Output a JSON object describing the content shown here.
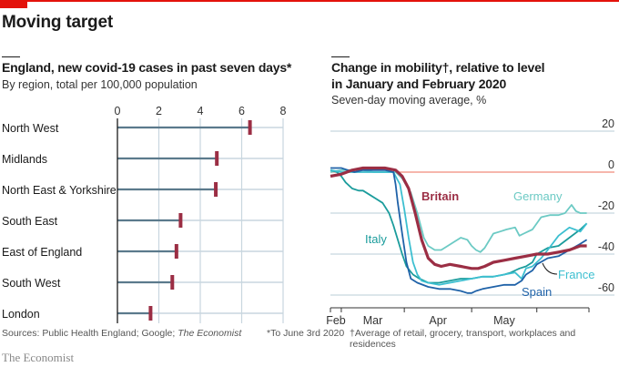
{
  "title": "Moving target",
  "brand": "The Economist",
  "footer": {
    "sources_prefix": "Sources: Public Health England; Google; ",
    "sources_italic": "The Economist",
    "note1": "*To June 3rd 2020",
    "note2": "†Average of retail, grocery, transport, workplaces and residences"
  },
  "colors": {
    "accent_red": "#e3120b",
    "bar_line": "#5b7a8c",
    "marker": "#9b2e44",
    "grid": "#c8d6df",
    "britain": "#9b2e44",
    "germany": "#6ccac4",
    "italy": "#1b9c9c",
    "france": "#3cbfd0",
    "spain": "#1f62a8",
    "zero_line": "#f08a7a"
  },
  "chart_data": [
    {
      "type": "bar",
      "title": "England, new covid-19 cases in past seven days*",
      "subtitle": "By region, total per 100,000 population",
      "categories": [
        "North West",
        "Midlands",
        "North East & Yorkshire",
        "South East",
        "East of England",
        "South West",
        "London"
      ],
      "values": [
        6.4,
        4.8,
        4.75,
        3.05,
        2.85,
        2.65,
        1.6
      ],
      "xlim": [
        0,
        8
      ],
      "xticks": [
        "0",
        "2",
        "4",
        "6",
        "8"
      ],
      "xtick_values": [
        0,
        2,
        4,
        6,
        8
      ],
      "grid": true
    },
    {
      "type": "line",
      "title_line1": "Change in mobility†, relative to level",
      "title_line2": "in January and February 2020",
      "subtitle": "Seven-day moving average, %",
      "ylim": [
        -65,
        20
      ],
      "yticks": [
        20,
        0,
        -20,
        -40,
        -60
      ],
      "ytick_labels": [
        "20",
        "0",
        "-20",
        "-40",
        "-60"
      ],
      "x_months": [
        "Feb",
        "Mar",
        "Apr",
        "May"
      ],
      "x_month_positions_days": [
        0,
        29,
        60,
        90
      ],
      "xlim_days": [
        -5,
        114
      ],
      "x_unit": "days since Feb 1st 2020",
      "series": [
        {
          "name": "Germany",
          "label": "Germany",
          "x": [
            -5,
            0,
            5,
            10,
            15,
            20,
            25,
            28,
            32,
            35,
            38,
            40,
            43,
            46,
            49,
            52,
            55,
            58,
            60,
            62,
            64,
            66,
            70,
            73,
            76,
            80,
            82,
            84,
            88,
            92,
            96,
            100,
            103,
            106,
            108,
            110,
            113
          ],
          "y": [
            0,
            1,
            1,
            1,
            0,
            0,
            0,
            -3,
            -10,
            -20,
            -32,
            -36,
            -38,
            -38,
            -36,
            -34,
            -32,
            -33,
            -36,
            -38,
            -39,
            -37,
            -30,
            -29,
            -28,
            -27,
            -31,
            -30,
            -28,
            -22,
            -21,
            -21,
            -20,
            -16,
            -19,
            -20,
            -20
          ]
        },
        {
          "name": "Britain",
          "label": "Britain",
          "x": [
            -5,
            0,
            5,
            10,
            15,
            20,
            25,
            28,
            31,
            34,
            37,
            40,
            43,
            46,
            50,
            55,
            60,
            63,
            66,
            70,
            75,
            80,
            85,
            90,
            95,
            100,
            105,
            110,
            113
          ],
          "y": [
            -2,
            -1,
            1,
            2,
            2,
            2,
            1,
            -2,
            -8,
            -20,
            -33,
            -42,
            -45,
            -46,
            -45,
            -46,
            -47,
            -47,
            -46,
            -44,
            -43,
            -42,
            -41,
            -40,
            -40,
            -39,
            -38,
            -36,
            -36
          ]
        },
        {
          "name": "Italy",
          "label": "Italy",
          "x": [
            -5,
            -2,
            0,
            2,
            5,
            8,
            10,
            13,
            16,
            19,
            22,
            24,
            26,
            28,
            30,
            33,
            36,
            40,
            45,
            50,
            55,
            60,
            65,
            70,
            75,
            78,
            80,
            82,
            85,
            88,
            90,
            95,
            100,
            105,
            110,
            113
          ],
          "y": [
            1,
            0,
            -2,
            -5,
            -8,
            -9,
            -9,
            -11,
            -13,
            -15,
            -20,
            -26,
            -33,
            -40,
            -46,
            -50,
            -52,
            -54,
            -54,
            -53,
            -52,
            -52,
            -51,
            -51,
            -50,
            -49,
            -48,
            -47,
            -46,
            -44,
            -40,
            -37,
            -36,
            -32,
            -28,
            -25
          ]
        },
        {
          "name": "France",
          "label": "France",
          "x": [
            -5,
            0,
            5,
            10,
            15,
            20,
            24,
            27,
            29,
            31,
            33,
            35,
            37,
            40,
            45,
            50,
            55,
            60,
            65,
            70,
            75,
            80,
            83,
            85,
            88,
            90,
            92,
            95,
            100,
            105,
            110,
            113
          ],
          "y": [
            1,
            0,
            0,
            0,
            0,
            0,
            0,
            -6,
            -18,
            -32,
            -44,
            -50,
            -53,
            -54,
            -55,
            -54,
            -53,
            -52,
            -51,
            -51,
            -50,
            -49,
            -52,
            -47,
            -46,
            -44,
            -42,
            -38,
            -31,
            -27,
            -29,
            -25
          ]
        },
        {
          "name": "Spain",
          "label": "Spain",
          "x": [
            -5,
            0,
            3,
            6,
            10,
            15,
            20,
            24,
            25,
            26,
            28,
            30,
            32,
            35,
            40,
            45,
            50,
            55,
            58,
            60,
            62,
            65,
            70,
            75,
            80,
            83,
            85,
            88,
            90,
            95,
            100,
            105,
            110,
            113
          ],
          "y": [
            2,
            2,
            1,
            0,
            1,
            1,
            1,
            0,
            -6,
            -15,
            -30,
            -44,
            -52,
            -54,
            -56,
            -57,
            -57,
            -58,
            -59,
            -59,
            -58,
            -57,
            -56,
            -55,
            -55,
            -53,
            -50,
            -48,
            -45,
            -42,
            -41,
            -38,
            -35,
            -33
          ]
        }
      ],
      "annotations": [
        {
          "text": "Britain",
          "series": "Britain"
        },
        {
          "text": "Germany",
          "series": "Germany"
        },
        {
          "text": "Italy",
          "series": "Italy"
        },
        {
          "text": "France",
          "series": "France"
        },
        {
          "text": "Spain",
          "series": "Spain"
        }
      ]
    }
  ]
}
